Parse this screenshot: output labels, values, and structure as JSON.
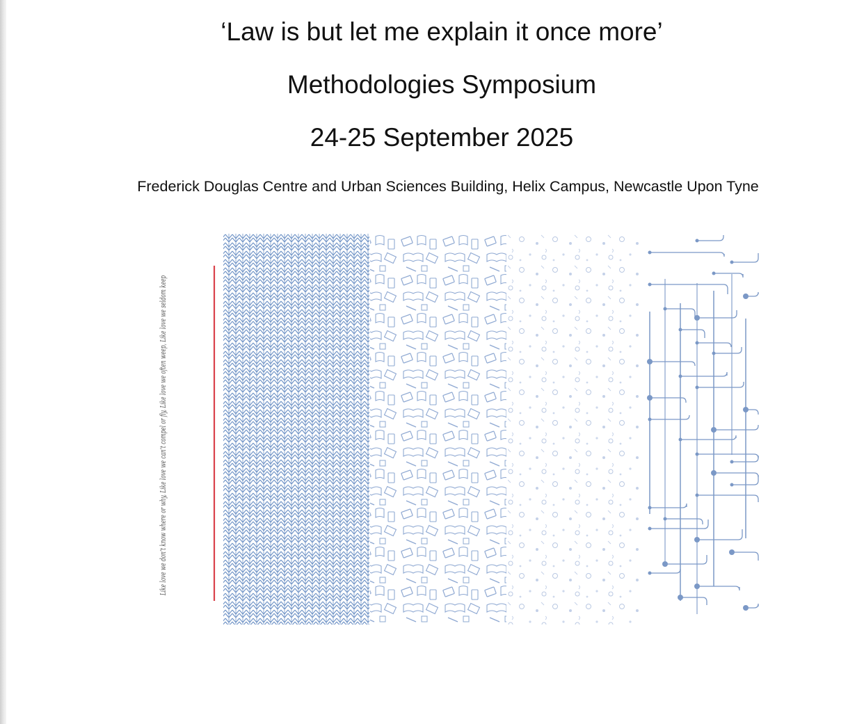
{
  "document": {
    "title": "‘Law is but let me explain it once more’",
    "subtitle": "Methodologies Symposium",
    "dates": "24-25 September 2025",
    "venue": "Frederick Douglas Centre and Urban Sciences Building, Helix Campus, Newcastle Upon Tyne"
  },
  "artwork": {
    "vertical_quote": "Like love we don’t know where or why, Like love we can’t compel or fly, Like love we often weep, Like love we seldom keep",
    "palette": {
      "pattern_blue": "#7d9ccb",
      "light_blue": "#b7c7e2",
      "accent_red": "#d9424b"
    },
    "panels": [
      "knit-chevron-pattern",
      "books-doodle-pattern",
      "dots-pattern",
      "circuit-pattern"
    ]
  }
}
